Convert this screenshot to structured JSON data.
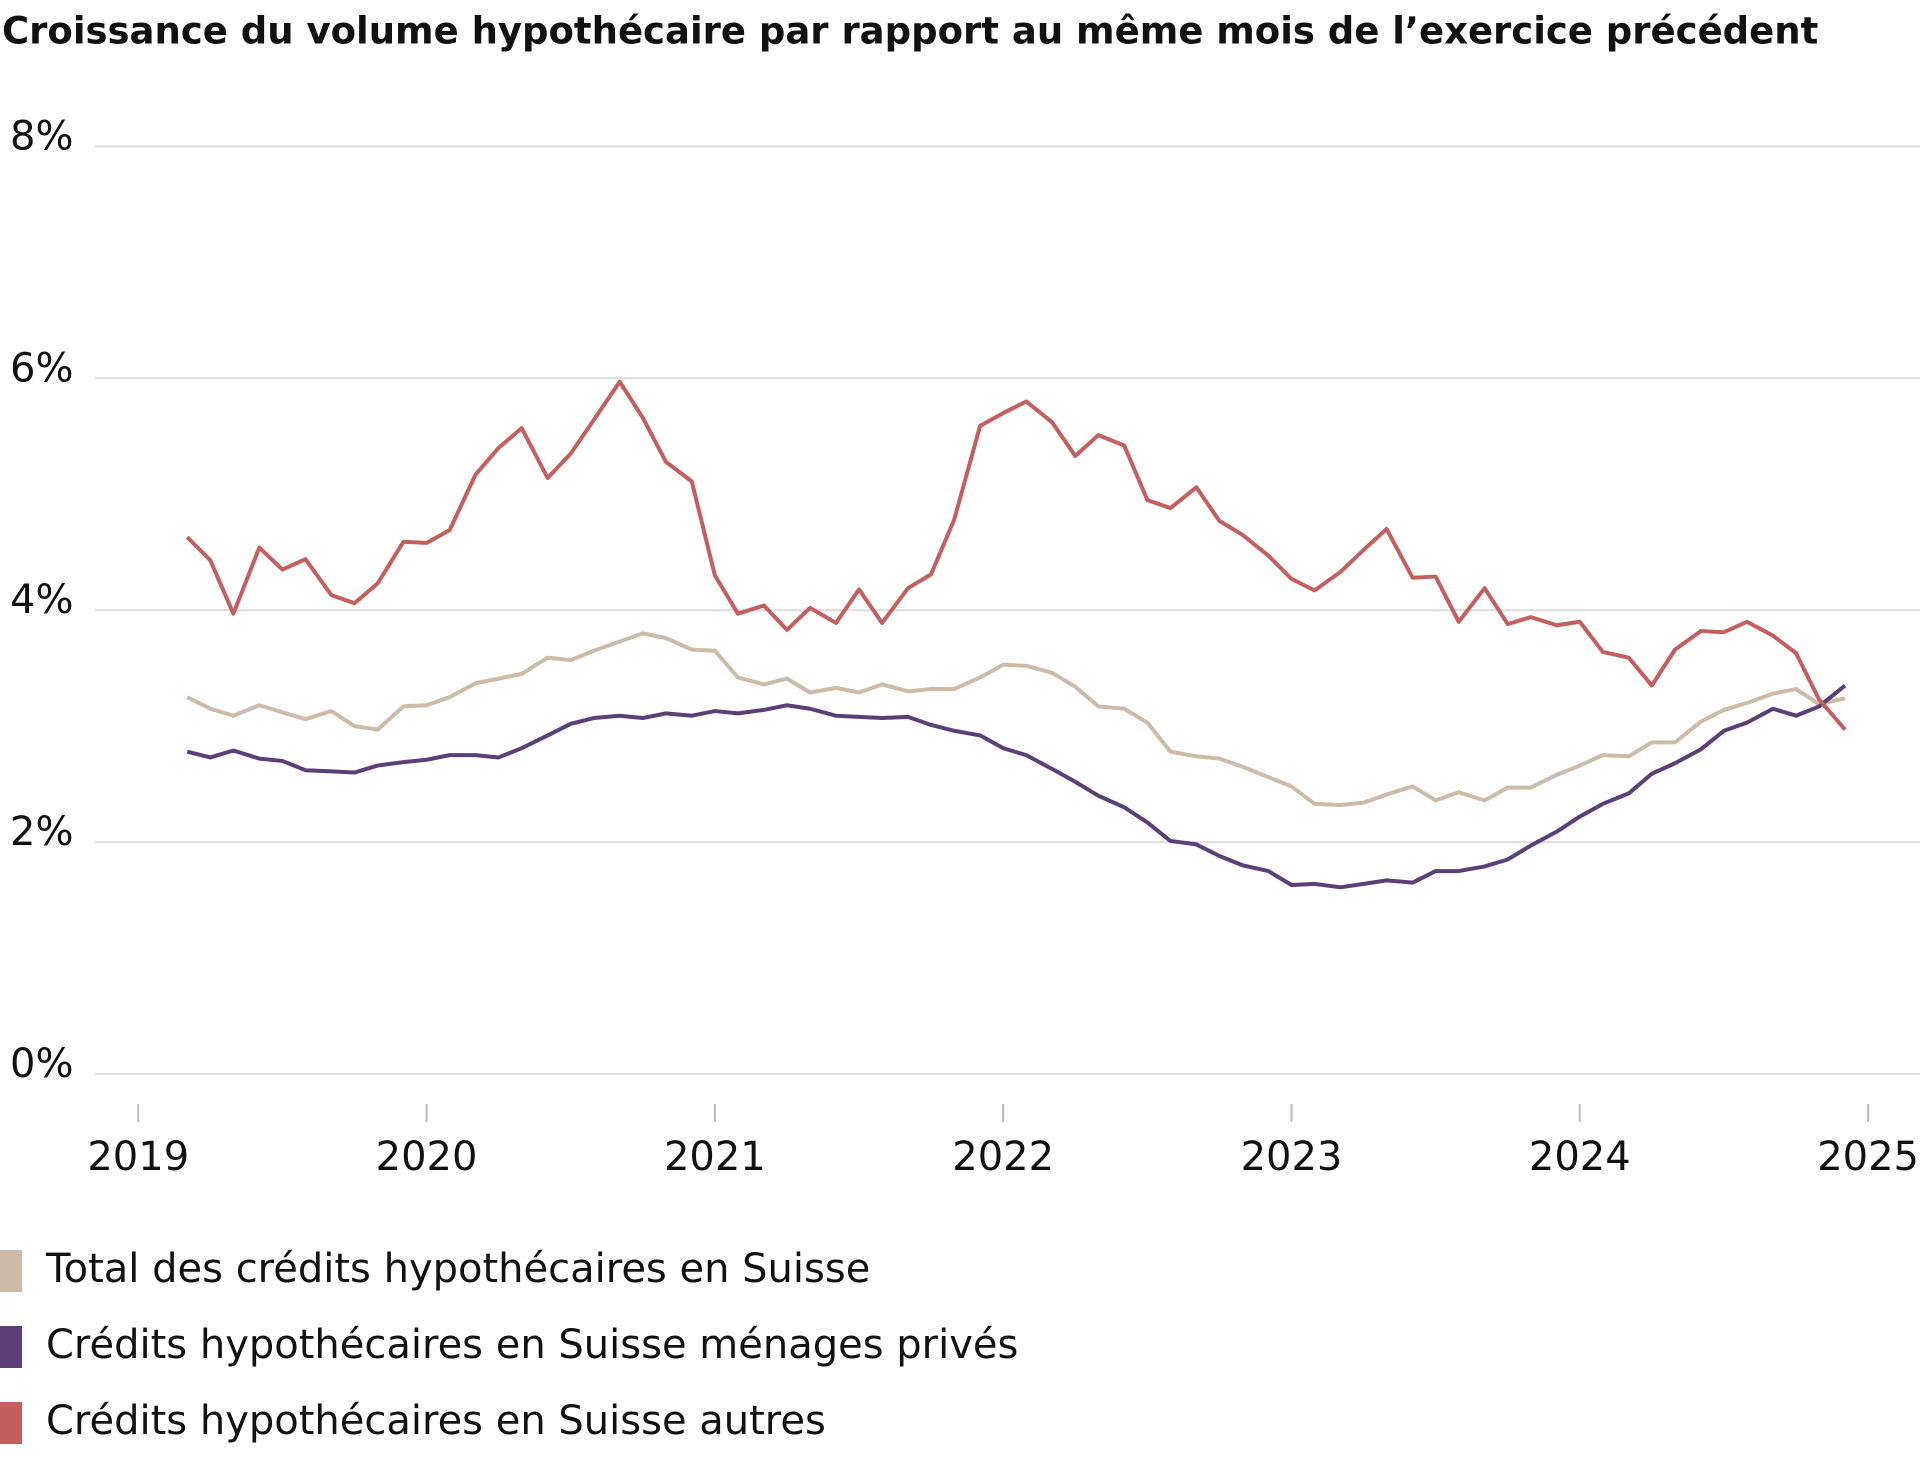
{
  "chart_data": {
    "type": "line",
    "title": "Croissance du volume hypothécaire par rapport au même mois de l’exercice précédent",
    "x": [
      2019.17,
      2019.25,
      2019.33,
      2019.42,
      2019.5,
      2019.58,
      2019.67,
      2019.75,
      2019.83,
      2019.92,
      2020,
      2020.08,
      2020.17,
      2020.25,
      2020.33,
      2020.42,
      2020.5,
      2020.58,
      2020.67,
      2020.75,
      2020.83,
      2020.92,
      2021,
      2021.08,
      2021.17,
      2021.25,
      2021.33,
      2021.42,
      2021.5,
      2021.58,
      2021.67,
      2021.75,
      2021.83,
      2021.92,
      2022,
      2022.08,
      2022.17,
      2022.25,
      2022.33,
      2022.42,
      2022.5,
      2022.58,
      2022.67,
      2022.75,
      2022.83,
      2022.92,
      2023,
      2023.08,
      2023.17,
      2023.25,
      2023.33,
      2023.42,
      2023.5,
      2023.58,
      2023.67,
      2023.75,
      2023.83,
      2023.92,
      2024,
      2024.08,
      2024.17,
      2024.25,
      2024.33,
      2024.42,
      2024.5,
      2024.58,
      2024.67,
      2024.75,
      2024.83,
      2024.92
    ],
    "series": [
      {
        "name": "Total des crédits hypothécaires en Suisse",
        "color": "#cdbba8",
        "values": [
          3.25,
          3.15,
          3.09,
          3.18,
          3.12,
          3.06,
          3.13,
          3.0,
          2.97,
          3.17,
          3.18,
          3.25,
          3.37,
          3.41,
          3.45,
          3.59,
          3.57,
          3.65,
          3.73,
          3.8,
          3.76,
          3.66,
          3.65,
          3.42,
          3.36,
          3.41,
          3.29,
          3.33,
          3.29,
          3.36,
          3.3,
          3.32,
          3.32,
          3.42,
          3.53,
          3.52,
          3.46,
          3.34,
          3.17,
          3.15,
          3.03,
          2.78,
          2.74,
          2.72,
          2.65,
          2.56,
          2.48,
          2.33,
          2.32,
          2.34,
          2.41,
          2.48,
          2.36,
          2.43,
          2.36,
          2.47,
          2.47,
          2.58,
          2.66,
          2.75,
          2.74,
          2.86,
          2.86,
          3.04,
          3.14,
          3.2,
          3.28,
          3.32,
          3.19,
          3.24
        ]
      },
      {
        "name": "Crédits hypothécaires en Suisse ménages privés",
        "color": "#5c3f78",
        "values": [
          2.78,
          2.73,
          2.79,
          2.72,
          2.7,
          2.62,
          2.61,
          2.6,
          2.66,
          2.69,
          2.71,
          2.75,
          2.75,
          2.73,
          2.81,
          2.92,
          3.02,
          3.07,
          3.09,
          3.07,
          3.11,
          3.09,
          3.13,
          3.11,
          3.14,
          3.18,
          3.15,
          3.09,
          3.08,
          3.07,
          3.08,
          3.01,
          2.96,
          2.92,
          2.81,
          2.75,
          2.63,
          2.52,
          2.4,
          2.3,
          2.17,
          2.01,
          1.98,
          1.88,
          1.8,
          1.75,
          1.63,
          1.64,
          1.61,
          1.64,
          1.67,
          1.65,
          1.75,
          1.75,
          1.79,
          1.85,
          1.97,
          2.09,
          2.22,
          2.33,
          2.42,
          2.59,
          2.68,
          2.8,
          2.96,
          3.03,
          3.15,
          3.09,
          3.17,
          3.35
        ]
      },
      {
        "name": "Crédits hypothécaires en Suisse autres",
        "color": "#c55f5f",
        "values": [
          4.63,
          4.43,
          3.97,
          4.54,
          4.35,
          4.44,
          4.13,
          4.06,
          4.23,
          4.59,
          4.58,
          4.69,
          5.17,
          5.4,
          5.57,
          5.14,
          5.35,
          5.64,
          5.97,
          5.66,
          5.28,
          5.11,
          4.3,
          3.97,
          4.04,
          3.83,
          4.02,
          3.89,
          4.18,
          3.89,
          4.19,
          4.31,
          4.78,
          5.59,
          5.7,
          5.8,
          5.62,
          5.33,
          5.51,
          5.42,
          4.95,
          4.88,
          5.06,
          4.77,
          4.65,
          4.47,
          4.27,
          4.17,
          4.33,
          4.52,
          4.7,
          4.28,
          4.29,
          3.9,
          4.19,
          3.88,
          3.94,
          3.87,
          3.9,
          3.64,
          3.59,
          3.35,
          3.66,
          3.82,
          3.81,
          3.9,
          3.78,
          3.63,
          3.23,
          2.97
        ]
      }
    ],
    "xlim": [
      2018.85,
      2025.18
    ],
    "xticks": [
      2019,
      2020,
      2021,
      2022,
      2023,
      2024,
      2025
    ],
    "ylim": [
      0,
      8.4
    ],
    "yticks": [
      {
        "value": 0,
        "label": "0%"
      },
      {
        "value": 2,
        "label": "2%"
      },
      {
        "value": 4,
        "label": "4%"
      },
      {
        "value": 6,
        "label": "6%"
      },
      {
        "value": 8,
        "label": "8%"
      }
    ],
    "grid": true
  }
}
